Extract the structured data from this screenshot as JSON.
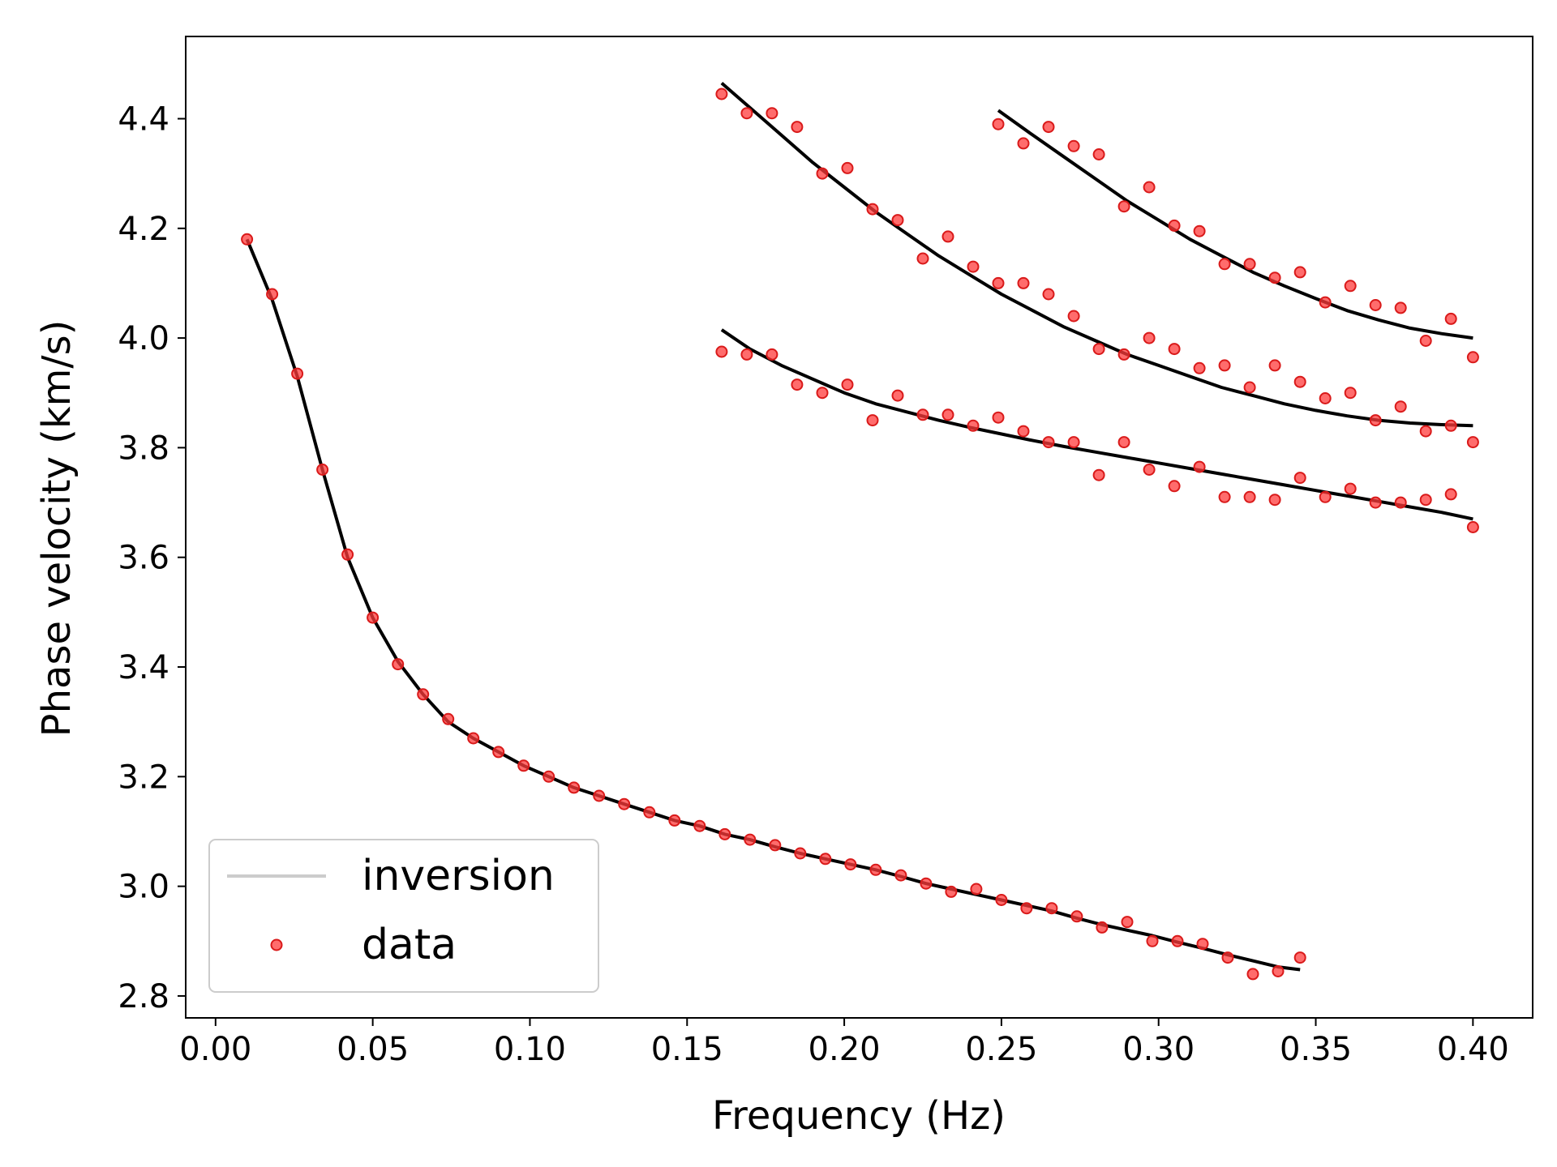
{
  "chart_data": {
    "type": "line",
    "title": "",
    "xlabel": "Frequency (Hz)",
    "ylabel": "Phase velocity (km/s)",
    "xlim": [
      -0.0095,
      0.419
    ],
    "ylim": [
      2.76,
      4.55
    ],
    "xticks": [
      0.0,
      0.05,
      0.1,
      0.15,
      0.2,
      0.25,
      0.3,
      0.35,
      0.4
    ],
    "xtick_labels": [
      "0.00",
      "0.05",
      "0.10",
      "0.15",
      "0.20",
      "0.25",
      "0.30",
      "0.35",
      "0.40"
    ],
    "yticks": [
      2.8,
      3.0,
      3.2,
      3.4,
      3.6,
      3.8,
      4.0,
      4.2,
      4.4
    ],
    "ytick_labels": [
      "2.8",
      "3.0",
      "3.2",
      "3.4",
      "3.6",
      "3.8",
      "4.0",
      "4.2",
      "4.4"
    ],
    "grid": false,
    "legend": {
      "position": "bottom-left",
      "entries": [
        {
          "label": "inversion",
          "kind": "line",
          "color": "#cccccc"
        },
        {
          "label": "data",
          "kind": "point",
          "color": "#ff3b3b"
        }
      ]
    },
    "colors": {
      "model_line": "#000000",
      "data_point": "#ff3b3b",
      "data_edge": "#d91a1a"
    },
    "series": [
      {
        "name": "inversion",
        "mode": "fundamental",
        "x": [
          0.01,
          0.018,
          0.026,
          0.034,
          0.042,
          0.05,
          0.058,
          0.066,
          0.074,
          0.082,
          0.09,
          0.098,
          0.106,
          0.114,
          0.122,
          0.13,
          0.138,
          0.146,
          0.154,
          0.162,
          0.17,
          0.178,
          0.186,
          0.194,
          0.202,
          0.21,
          0.218,
          0.226,
          0.234,
          0.242,
          0.25,
          0.258,
          0.266,
          0.274,
          0.282,
          0.29,
          0.298,
          0.306,
          0.314,
          0.322,
          0.33,
          0.338,
          0.345
        ],
        "y": [
          4.18,
          4.07,
          3.93,
          3.76,
          3.6,
          3.49,
          3.41,
          3.35,
          3.3,
          3.27,
          3.245,
          3.22,
          3.2,
          3.18,
          3.165,
          3.15,
          3.135,
          3.12,
          3.11,
          3.095,
          3.085,
          3.072,
          3.06,
          3.05,
          3.04,
          3.03,
          3.018,
          3.005,
          2.995,
          2.985,
          2.975,
          2.965,
          2.955,
          2.942,
          2.93,
          2.92,
          2.91,
          2.898,
          2.887,
          2.875,
          2.864,
          2.853,
          2.848
        ]
      },
      {
        "name": "inversion",
        "mode": "overtone-1",
        "x": [
          0.161,
          0.17,
          0.18,
          0.19,
          0.2,
          0.21,
          0.22,
          0.23,
          0.24,
          0.25,
          0.26,
          0.27,
          0.28,
          0.29,
          0.3,
          0.31,
          0.32,
          0.33,
          0.34,
          0.35,
          0.36,
          0.37,
          0.38,
          0.39,
          0.4
        ],
        "y": [
          4.015,
          3.98,
          3.95,
          3.925,
          3.9,
          3.88,
          3.865,
          3.85,
          3.837,
          3.825,
          3.813,
          3.802,
          3.792,
          3.782,
          3.772,
          3.762,
          3.752,
          3.742,
          3.732,
          3.722,
          3.712,
          3.702,
          3.692,
          3.682,
          3.67
        ]
      },
      {
        "name": "inversion",
        "mode": "overtone-2",
        "x": [
          0.161,
          0.17,
          0.18,
          0.19,
          0.2,
          0.21,
          0.22,
          0.23,
          0.24,
          0.25,
          0.26,
          0.27,
          0.28,
          0.29,
          0.3,
          0.31,
          0.32,
          0.33,
          0.34,
          0.35,
          0.36,
          0.37,
          0.38,
          0.39,
          0.4
        ],
        "y": [
          4.465,
          4.42,
          4.37,
          4.32,
          4.275,
          4.23,
          4.19,
          4.15,
          4.115,
          4.08,
          4.05,
          4.02,
          3.995,
          3.97,
          3.95,
          3.93,
          3.91,
          3.895,
          3.88,
          3.868,
          3.858,
          3.85,
          3.845,
          3.842,
          3.84
        ]
      },
      {
        "name": "inversion",
        "mode": "overtone-3",
        "x": [
          0.249,
          0.26,
          0.27,
          0.28,
          0.29,
          0.3,
          0.31,
          0.32,
          0.33,
          0.34,
          0.35,
          0.36,
          0.37,
          0.38,
          0.39,
          0.4
        ],
        "y": [
          4.415,
          4.37,
          4.33,
          4.29,
          4.25,
          4.215,
          4.18,
          4.15,
          4.12,
          4.095,
          4.072,
          4.05,
          4.033,
          4.018,
          4.008,
          4.0
        ]
      },
      {
        "name": "data",
        "mode": "fundamental",
        "x": [
          0.01,
          0.018,
          0.026,
          0.034,
          0.042,
          0.05,
          0.058,
          0.066,
          0.074,
          0.082,
          0.09,
          0.098,
          0.106,
          0.114,
          0.122,
          0.13,
          0.138,
          0.146,
          0.154,
          0.162,
          0.17,
          0.178,
          0.186,
          0.194,
          0.202,
          0.21,
          0.218,
          0.226,
          0.234,
          0.242,
          0.25,
          0.258,
          0.266,
          0.274,
          0.282,
          0.29,
          0.298,
          0.306,
          0.314,
          0.322,
          0.33,
          0.338,
          0.345
        ],
        "y": [
          4.18,
          4.08,
          3.935,
          3.76,
          3.605,
          3.49,
          3.405,
          3.35,
          3.305,
          3.27,
          3.245,
          3.22,
          3.2,
          3.18,
          3.165,
          3.15,
          3.135,
          3.12,
          3.11,
          3.095,
          3.085,
          3.075,
          3.06,
          3.05,
          3.04,
          3.03,
          3.02,
          3.005,
          2.99,
          2.995,
          2.975,
          2.96,
          2.96,
          2.945,
          2.925,
          2.935,
          2.9,
          2.9,
          2.895,
          2.87,
          2.84,
          2.845,
          2.87
        ]
      },
      {
        "name": "data",
        "mode": "overtone-1",
        "x": [
          0.161,
          0.169,
          0.177,
          0.185,
          0.193,
          0.201,
          0.209,
          0.217,
          0.225,
          0.233,
          0.241,
          0.249,
          0.257,
          0.265,
          0.273,
          0.281,
          0.289,
          0.297,
          0.305,
          0.313,
          0.321,
          0.329,
          0.337,
          0.345,
          0.353,
          0.361,
          0.369,
          0.377,
          0.385,
          0.393,
          0.4
        ],
        "y": [
          3.975,
          3.97,
          3.97,
          3.915,
          3.9,
          3.915,
          3.85,
          3.895,
          3.86,
          3.86,
          3.84,
          3.855,
          3.83,
          3.81,
          3.81,
          3.75,
          3.81,
          3.76,
          3.73,
          3.765,
          3.71,
          3.71,
          3.705,
          3.745,
          3.71,
          3.725,
          3.7,
          3.7,
          3.705,
          3.715,
          3.655
        ]
      },
      {
        "name": "data",
        "mode": "overtone-2",
        "x": [
          0.161,
          0.169,
          0.177,
          0.185,
          0.193,
          0.201,
          0.209,
          0.217,
          0.225,
          0.233,
          0.241,
          0.249,
          0.257,
          0.265,
          0.273,
          0.281,
          0.289,
          0.297,
          0.305,
          0.313,
          0.321,
          0.329,
          0.337,
          0.345,
          0.353,
          0.361,
          0.369,
          0.377,
          0.385,
          0.393,
          0.4
        ],
        "y": [
          4.445,
          4.41,
          4.41,
          4.385,
          4.3,
          4.31,
          4.235,
          4.215,
          4.145,
          4.185,
          4.13,
          4.1,
          4.1,
          4.08,
          4.04,
          3.98,
          3.97,
          4.0,
          3.98,
          3.945,
          3.95,
          3.91,
          3.95,
          3.92,
          3.89,
          3.9,
          3.85,
          3.875,
          3.83,
          3.84,
          3.81
        ]
      },
      {
        "name": "data",
        "mode": "overtone-3",
        "x": [
          0.249,
          0.257,
          0.265,
          0.273,
          0.281,
          0.289,
          0.297,
          0.305,
          0.313,
          0.321,
          0.329,
          0.337,
          0.345,
          0.353,
          0.361,
          0.369,
          0.377,
          0.385,
          0.393,
          0.4
        ],
        "y": [
          4.39,
          4.355,
          4.385,
          4.35,
          4.335,
          4.24,
          4.275,
          4.205,
          4.195,
          4.135,
          4.135,
          4.11,
          4.12,
          4.065,
          4.095,
          4.06,
          4.055,
          3.995,
          4.035,
          3.965
        ]
      }
    ]
  }
}
